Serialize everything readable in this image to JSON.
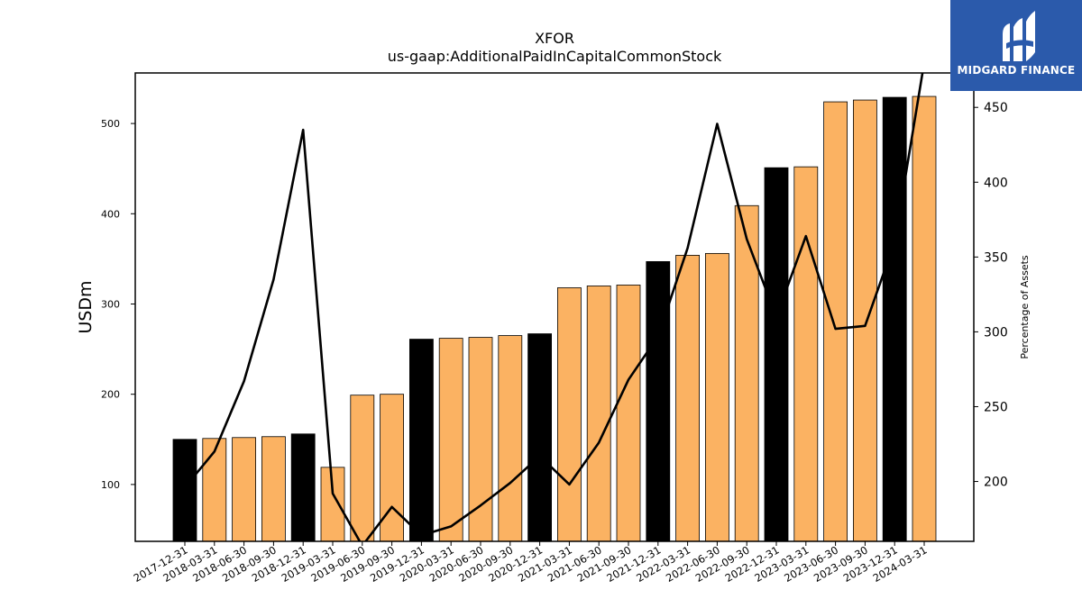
{
  "chart_data": {
    "type": "bar",
    "title": "XFOR",
    "subtitle": "us-gaap:AdditionalPaidInCapitalCommonStock",
    "ylabel": "USDm",
    "y2label": "Percentage of Assets",
    "ylim": [
      37,
      556
    ],
    "y2lim": [
      160,
      473
    ],
    "yticks": [
      100,
      200,
      300,
      400,
      500
    ],
    "y2ticks": [
      200,
      250,
      300,
      350,
      400,
      450
    ],
    "grid": false,
    "categories": [
      "2017-12-31",
      "2018-03-31",
      "2018-06-30",
      "2018-09-30",
      "2018-12-31",
      "2019-03-31",
      "2019-06-30",
      "2019-09-30",
      "2019-12-31",
      "2020-03-31",
      "2020-06-30",
      "2020-09-30",
      "2020-12-31",
      "2021-03-31",
      "2021-06-30",
      "2021-09-30",
      "2021-12-31",
      "2022-03-31",
      "2022-06-30",
      "2022-09-30",
      "2022-12-31",
      "2023-03-31",
      "2023-06-30",
      "2023-09-30",
      "2023-12-31",
      "2024-03-31"
    ],
    "series": [
      {
        "type": "bar",
        "axis": "left",
        "values": [
          150,
          151,
          152,
          153,
          156,
          119,
          199,
          200,
          261,
          262,
          263,
          265,
          267,
          318,
          320,
          321,
          347,
          354,
          356,
          409,
          451,
          452,
          524,
          526,
          529,
          530
        ],
        "colors": [
          "#000000",
          "#fbb262",
          "#fbb262",
          "#fbb262",
          "#000000",
          "#fbb262",
          "#fbb262",
          "#fbb262",
          "#000000",
          "#fbb262",
          "#fbb262",
          "#fbb262",
          "#000000",
          "#fbb262",
          "#fbb262",
          "#fbb262",
          "#000000",
          "#fbb262",
          "#fbb262",
          "#fbb262",
          "#000000",
          "#fbb262",
          "#fbb262",
          "#fbb262",
          "#000000",
          "#fbb262"
        ]
      },
      {
        "type": "line",
        "axis": "right",
        "color": "#000000",
        "values": [
          196,
          220,
          267,
          335,
          435,
          192,
          157,
          183,
          164,
          170,
          184,
          199,
          217,
          198,
          226,
          268,
          297,
          356,
          439,
          362,
          310,
          364,
          302,
          304,
          360,
          480
        ]
      }
    ]
  },
  "logo": {
    "text": "MIDGARD FINANCE",
    "icon": "midgard-logo-icon"
  }
}
